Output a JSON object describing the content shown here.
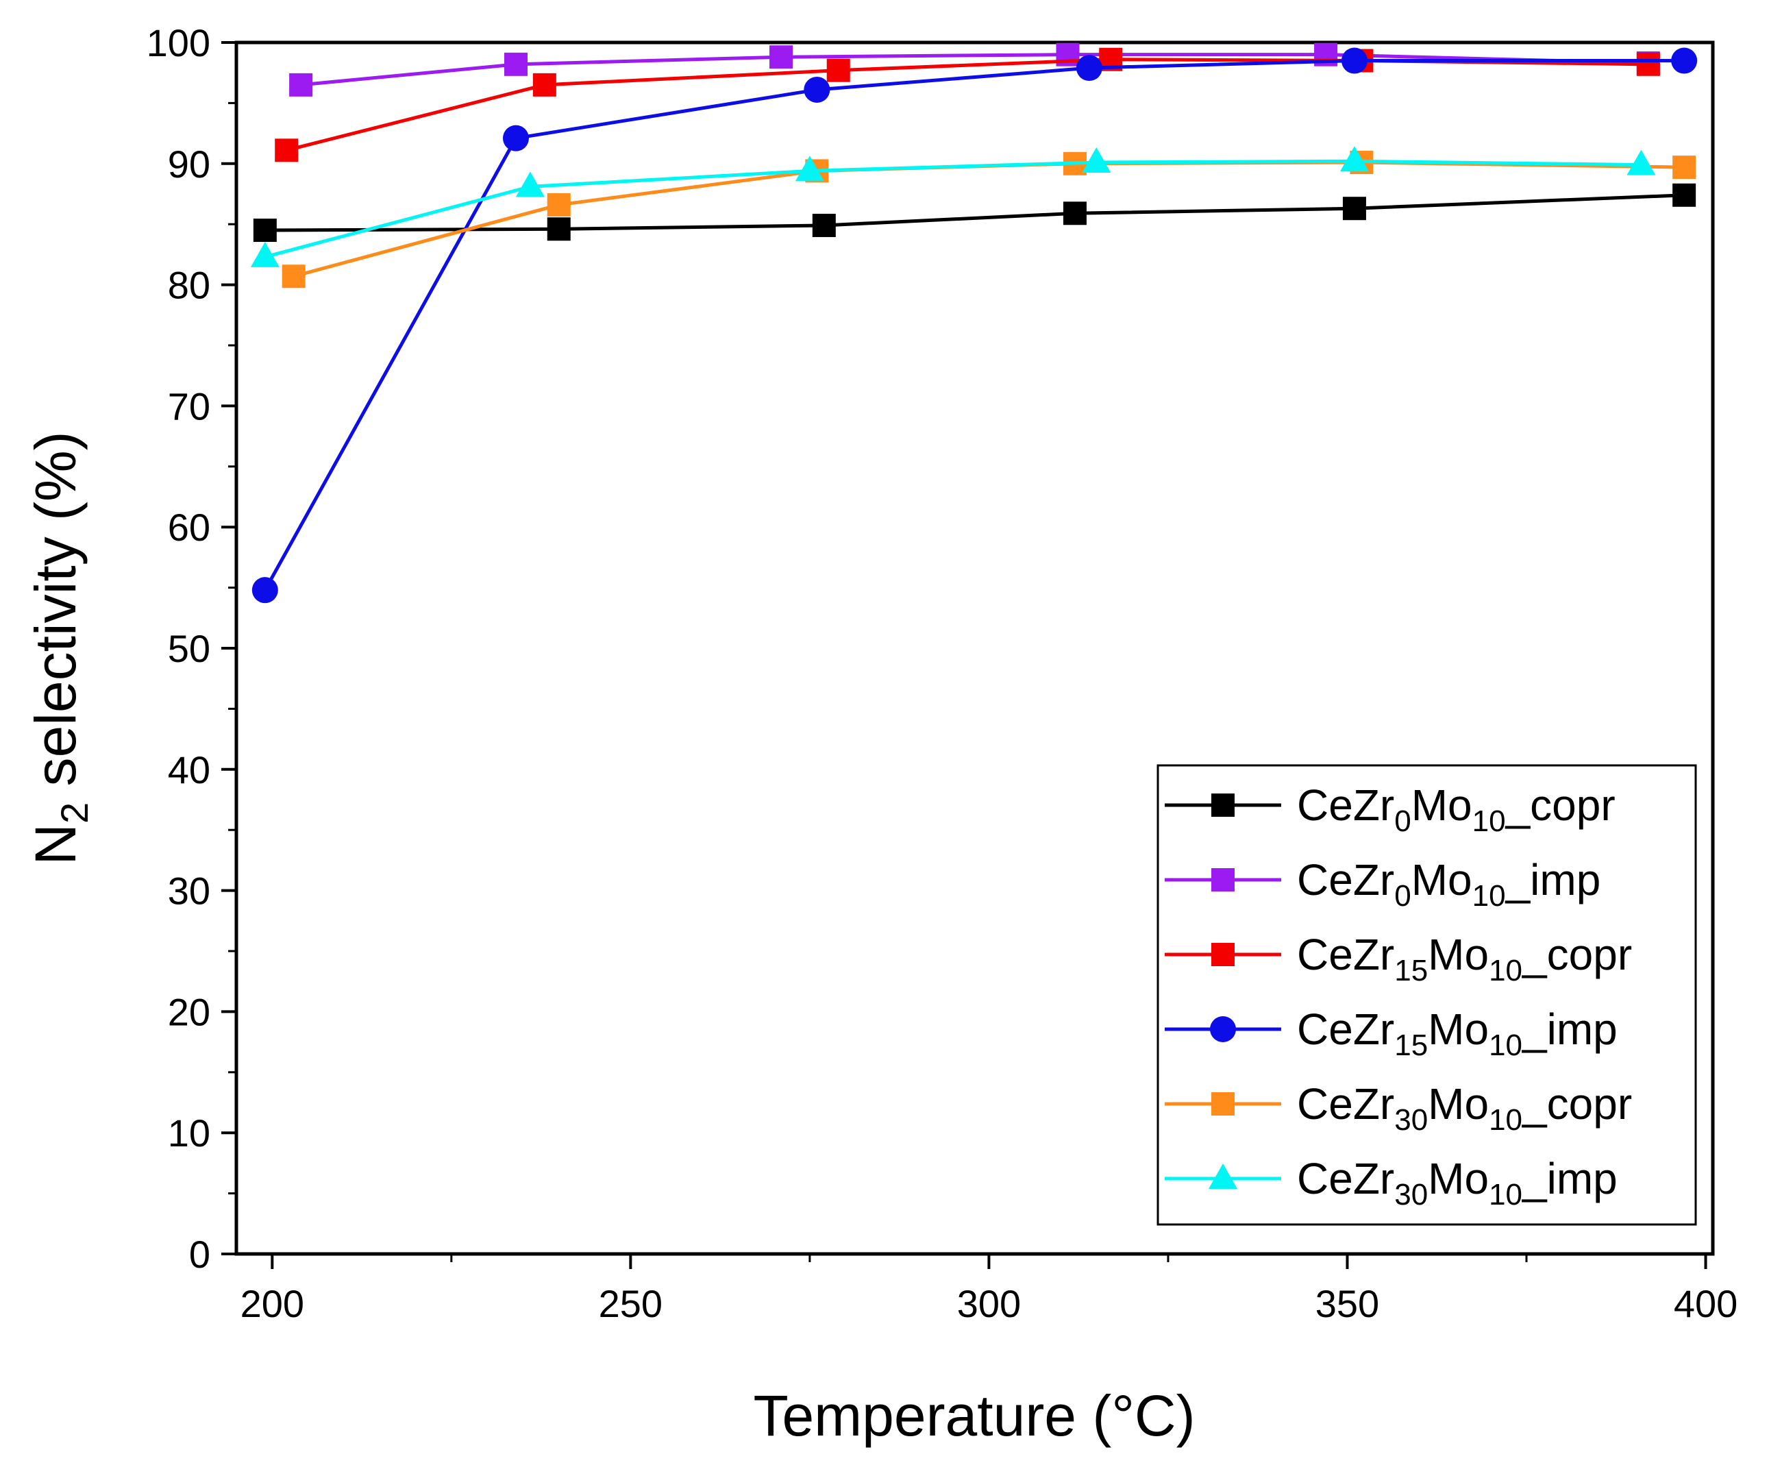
{
  "chart_data": {
    "type": "line",
    "xlabel": "Temperature (°C)",
    "ylabel": {
      "main": "N",
      "sub": "2",
      "rest": " selectivity (%)"
    },
    "xlim": [
      195,
      401
    ],
    "ylim": [
      0,
      100
    ],
    "xticks": [
      200,
      250,
      300,
      350,
      400
    ],
    "yticks": [
      0,
      10,
      20,
      30,
      40,
      50,
      60,
      70,
      80,
      90,
      100
    ],
    "legend_position": "bottom-right",
    "series": [
      {
        "key": "s0",
        "label": [
          {
            "t": "CeZr"
          },
          {
            "t": "0",
            "sub": true
          },
          {
            "t": "Mo"
          },
          {
            "t": "10",
            "sub": true
          },
          {
            "t": "_copr"
          }
        ],
        "color": "#000000",
        "marker": "square",
        "x": [
          199,
          240,
          277,
          312,
          351,
          397
        ],
        "y": [
          84.5,
          84.6,
          84.9,
          85.9,
          86.3,
          87.4
        ]
      },
      {
        "key": "s1",
        "label": [
          {
            "t": "CeZr"
          },
          {
            "t": "0",
            "sub": true
          },
          {
            "t": "Mo"
          },
          {
            "t": "10",
            "sub": true
          },
          {
            "t": "_imp"
          }
        ],
        "color": "#9B1BF0",
        "marker": "square",
        "x": [
          204,
          234,
          271,
          311,
          347,
          392
        ],
        "y": [
          96.5,
          98.2,
          98.8,
          99.0,
          99.0,
          98.3
        ]
      },
      {
        "key": "s2",
        "label": [
          {
            "t": "CeZr"
          },
          {
            "t": "15",
            "sub": true
          },
          {
            "t": "Mo"
          },
          {
            "t": "10",
            "sub": true
          },
          {
            "t": "_copr"
          }
        ],
        "color": "#F50000",
        "marker": "square",
        "x": [
          202,
          238,
          279,
          317,
          352,
          392
        ],
        "y": [
          91.1,
          96.5,
          97.7,
          98.6,
          98.5,
          98.2
        ]
      },
      {
        "key": "s3",
        "label": [
          {
            "t": "CeZr"
          },
          {
            "t": "15",
            "sub": true
          },
          {
            "t": "Mo"
          },
          {
            "t": "10",
            "sub": true
          },
          {
            "t": "_imp"
          }
        ],
        "color": "#0D0DE8",
        "marker": "circle",
        "x": [
          199,
          234,
          276,
          314,
          351,
          397
        ],
        "y": [
          54.8,
          92.1,
          96.1,
          97.9,
          98.5,
          98.5
        ]
      },
      {
        "key": "s4",
        "label": [
          {
            "t": "CeZr"
          },
          {
            "t": "30",
            "sub": true
          },
          {
            "t": "Mo"
          },
          {
            "t": "10",
            "sub": true
          },
          {
            "t": "_copr"
          }
        ],
        "color": "#FF8C1A",
        "marker": "square",
        "x": [
          203,
          240,
          276,
          312,
          352,
          397
        ],
        "y": [
          80.7,
          86.6,
          89.4,
          90.0,
          90.1,
          89.7
        ]
      },
      {
        "key": "s5",
        "label": [
          {
            "t": "CeZr"
          },
          {
            "t": "30",
            "sub": true
          },
          {
            "t": "Mo"
          },
          {
            "t": "10",
            "sub": true
          },
          {
            "t": "_imp"
          }
        ],
        "color": "#00F5F5",
        "marker": "triangle",
        "x": [
          199,
          236,
          275,
          315,
          351,
          391
        ],
        "y": [
          82.3,
          88.1,
          89.4,
          90.1,
          90.2,
          89.9
        ]
      }
    ]
  }
}
